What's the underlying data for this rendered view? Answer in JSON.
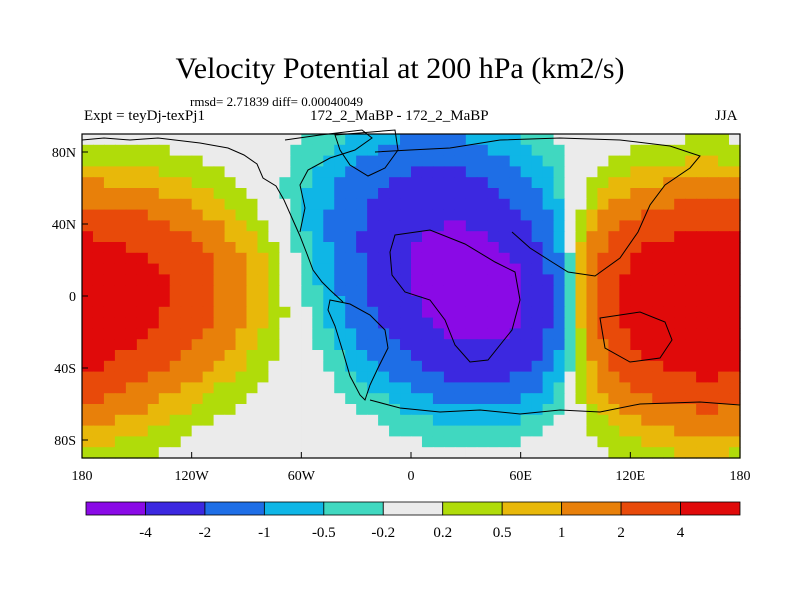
{
  "chart_data": {
    "type": "contour-map",
    "title": "Velocity Potential at 200 hPa (km2/s)",
    "stats": "rmsd= 2.71839 diff= 0.00040049",
    "left_label": "Expt = teyDj-texPj1",
    "center_label": "172_2_MaBP - 172_2_MaBP",
    "right_label": "JJA",
    "x_axis": {
      "range": [
        -180,
        180
      ],
      "ticks": [
        {
          "value": -180,
          "label": "180"
        },
        {
          "value": -120,
          "label": "120W"
        },
        {
          "value": -60,
          "label": "60W"
        },
        {
          "value": 0,
          "label": "0"
        },
        {
          "value": 60,
          "label": "60E"
        },
        {
          "value": 120,
          "label": "120E"
        },
        {
          "value": 180,
          "label": "180"
        }
      ]
    },
    "y_axis": {
      "range": [
        -90,
        90
      ],
      "ticks": [
        {
          "value": 80,
          "label": "80N"
        },
        {
          "value": 40,
          "label": "40N"
        },
        {
          "value": 0,
          "label": "0"
        },
        {
          "value": -40,
          "label": "40S"
        },
        {
          "value": -80,
          "label": "80S"
        }
      ]
    },
    "colorbar": {
      "colors": [
        "#8a0ae6",
        "#3c28e0",
        "#1e6ee6",
        "#0fb6e6",
        "#40d8c0",
        "#ebebeb",
        "#b0dc0a",
        "#e8b80a",
        "#e8800a",
        "#e84a0a",
        "#e00a0a"
      ],
      "boundaries": [
        "-4",
        "-2",
        "-1",
        "-0.5",
        "-0.2",
        "0.2",
        "0.5",
        "1",
        "2",
        "4"
      ]
    },
    "field": {
      "description": "Positive velocity potential over the Pacific (max ~4+ near 150E 20N and 120W 0), negative centered over Africa/Indian Ocean (min below -4 near 40E 10S)",
      "centers": [
        {
          "lon": 40,
          "lat": -5,
          "value": -5.0
        },
        {
          "lon": 10,
          "lat": 45,
          "value": -2.5
        },
        {
          "lon": 140,
          "lat": 5,
          "value": 4.5
        },
        {
          "lon": -150,
          "lat": 5,
          "value": 3.5
        },
        {
          "lon": 160,
          "lat": -25,
          "value": 3.0
        }
      ]
    }
  }
}
